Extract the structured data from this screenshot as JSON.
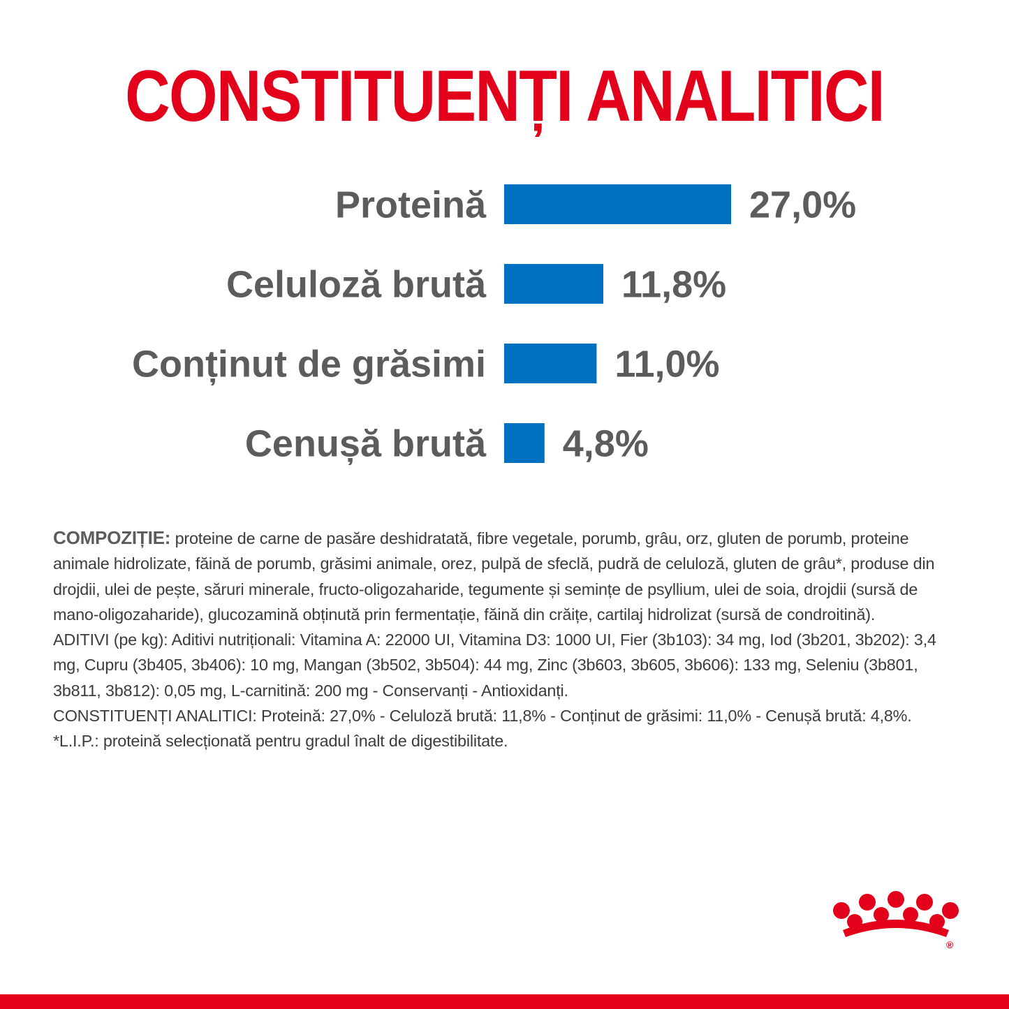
{
  "colors": {
    "brand_red": "#e2001a",
    "bar_blue": "#0070c0",
    "text_gray": "#5c5c5c",
    "body_text": "#3c3c3c"
  },
  "header": {
    "title": "CONSTITUENȚI ANALITICI"
  },
  "chart_data": {
    "type": "bar",
    "orientation": "horizontal",
    "title": "CONSTITUENȚI ANALITICI",
    "categories": [
      "Proteină",
      "Celuloză brută",
      "Conținut de grăsimi",
      "Cenușă brută"
    ],
    "values": [
      27.0,
      11.8,
      11.0,
      4.8
    ],
    "value_labels": [
      "27,0%",
      "11,8%",
      "11,0%",
      "4,8%"
    ],
    "unit": "%",
    "grid": false,
    "legend": "none",
    "xlim": [
      0,
      27.0
    ]
  },
  "composition": {
    "label": "COMPOZIȚIE:",
    "ingredients": "proteine de carne de pasăre deshidratată, fibre vegetale, porumb, grâu, orz, gluten de porumb, proteine animale hidrolizate, făină de porumb, grăsimi animale, orez, pulpă de sfeclă, pudră de celuloză, gluten de grâu*, produse din drojdii, ulei de pește, săruri minerale, fructo-oligozaharide, tegumente și semințe de psyllium, ulei de soia, drojdii (sursă de mano-oligozaharide), glucozamină obținută prin fermentație, făină din crăițe, cartilaj hidrolizat (sursă de condroitină).",
    "additives": "ADITIVI (pe kg): Aditivi nutriționali: Vitamina A: 22000 UI, Vitamina D3: 1000 UI, Fier (3b103): 34 mg, Iod (3b201, 3b202): 3,4 mg, Cupru (3b405, 3b406): 10 mg, Mangan (3b502, 3b504): 44 mg, Zinc (3b603, 3b605, 3b606): 133 mg, Seleniu (3b801, 3b811, 3b812): 0,05 mg, L-carnitină: 200 mg - Conservanți - Antioxidanți.",
    "analytical": "CONSTITUENȚI ANALITICI: Proteină: 27,0% - Celuloză brută: 11,8% - Conținut de grăsimi: 11,0% - Cenușă brută: 4,8%.",
    "footnote": "*L.I.P.: proteină selecționată pentru gradul înalt de digestibilitate."
  },
  "logo": {
    "icon": "royal-canin-crown-logo-icon",
    "mark": "®"
  }
}
